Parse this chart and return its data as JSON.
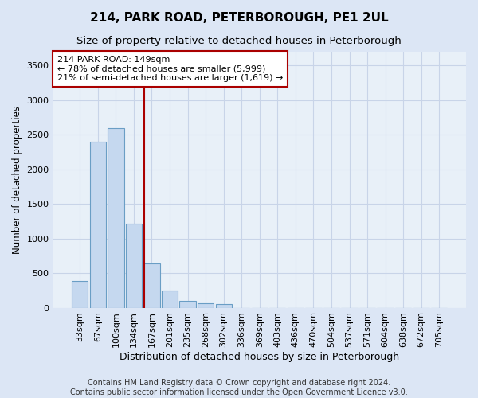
{
  "title": "214, PARK ROAD, PETERBOROUGH, PE1 2UL",
  "subtitle": "Size of property relative to detached houses in Peterborough",
  "xlabel": "Distribution of detached houses by size in Peterborough",
  "ylabel": "Number of detached properties",
  "categories": [
    "33sqm",
    "67sqm",
    "100sqm",
    "134sqm",
    "167sqm",
    "201sqm",
    "235sqm",
    "268sqm",
    "302sqm",
    "336sqm",
    "369sqm",
    "403sqm",
    "436sqm",
    "470sqm",
    "504sqm",
    "537sqm",
    "571sqm",
    "604sqm",
    "638sqm",
    "672sqm",
    "705sqm"
  ],
  "values": [
    390,
    2400,
    2600,
    1220,
    640,
    245,
    95,
    60,
    50,
    0,
    0,
    0,
    0,
    0,
    0,
    0,
    0,
    0,
    0,
    0,
    0
  ],
  "bar_color": "#c5d8ef",
  "bar_edge_color": "#6a9ec5",
  "vline_x": 3.57,
  "vline_color": "#aa0000",
  "annotation_line1": "214 PARK ROAD: 149sqm",
  "annotation_line2": "← 78% of detached houses are smaller (5,999)",
  "annotation_line3": "21% of semi-detached houses are larger (1,619) →",
  "annotation_box_color": "#ffffff",
  "annotation_box_edge_color": "#aa0000",
  "ylim": [
    0,
    3700
  ],
  "yticks": [
    0,
    500,
    1000,
    1500,
    2000,
    2500,
    3000,
    3500
  ],
  "footer_line1": "Contains HM Land Registry data © Crown copyright and database right 2024.",
  "footer_line2": "Contains public sector information licensed under the Open Government Licence v3.0.",
  "bg_color": "#dce6f5",
  "plot_bg_color": "#e8f0f8",
  "grid_color": "#c8d4e8",
  "title_fontsize": 11,
  "subtitle_fontsize": 9.5,
  "ylabel_fontsize": 8.5,
  "xlabel_fontsize": 9,
  "tick_fontsize": 8,
  "footer_fontsize": 7
}
